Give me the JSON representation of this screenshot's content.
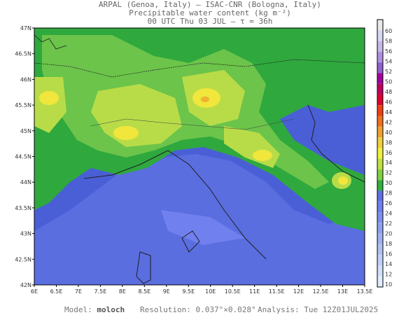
{
  "header": {
    "line1": "ARPAL (Genoa, Italy)  —  ISAC-CNR (Bologna, Italy)",
    "line2": "Precipitable water content (kg m⁻²)",
    "line3": "00 UTC Thu 03 JUL  —  τ = 36h"
  },
  "axes": {
    "x_ticks": [
      "6E",
      "6.5E",
      "7E",
      "7.5E",
      "8E",
      "8.5E",
      "9E",
      "9.5E",
      "10E",
      "10.5E",
      "11E",
      "11.5E",
      "12E",
      "12.5E",
      "13E",
      "13.5E"
    ],
    "y_ticks": [
      "47N",
      "46.5N",
      "46N",
      "45.5N",
      "45N",
      "44.5N",
      "44N",
      "43.5N",
      "43N",
      "42.5N",
      "42N"
    ]
  },
  "colorbar": {
    "labels": [
      "60",
      "58",
      "56",
      "54",
      "52",
      "50",
      "48",
      "46",
      "44",
      "42",
      "40",
      "38",
      "36",
      "34",
      "32",
      "30",
      "28",
      "26",
      "24",
      "22",
      "20",
      "18",
      "16",
      "14",
      "12",
      "10"
    ],
    "colors": [
      "#e8e8e8",
      "#d8d8f0",
      "#c8b8e8",
      "#b090e0",
      "#9060d0",
      "#a000a0",
      "#c00060",
      "#e00030",
      "#f04010",
      "#f07020",
      "#f0a030",
      "#f0d040",
      "#f0f040",
      "#c0e040",
      "#80d040",
      "#30b040",
      "#6070e0",
      "#7080f0",
      "#8090f0",
      "#90a0f0",
      "#a0b0f0",
      "#b0c0f0",
      "#c0d0f8",
      "#d0e0f8",
      "#e0ecfc"
    ]
  },
  "footer": {
    "model_label": "Model:",
    "model_value": "moloch",
    "resolution": "Resolution: 0.037°×0.028°",
    "analysis": "Analysis: Tue 12Z01JUL2025"
  }
}
